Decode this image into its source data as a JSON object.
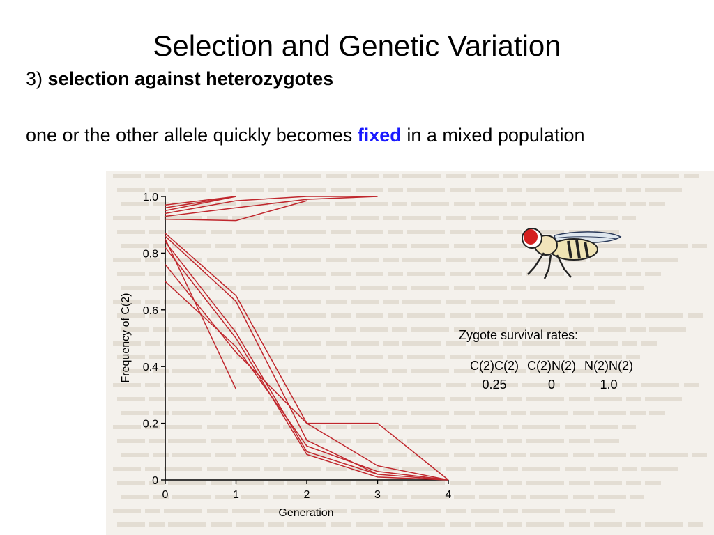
{
  "slide": {
    "title": "Selection and Genetic Variation",
    "subtitle_prefix": "3) ",
    "subtitle_bold": "selection against heterozygotes",
    "statement_before": "one or the other allele quickly becomes ",
    "statement_highlight": "fixed",
    "statement_after": " in a mixed population",
    "highlight_color": "#1a1aff"
  },
  "legend": {
    "title": "Zygote survival rates:",
    "headers": [
      "C(2)C(2)",
      "C(2)N(2)",
      "N(2)N(2)"
    ],
    "values": [
      "0.25",
      "0",
      "1.0"
    ]
  },
  "chart_data": {
    "type": "line",
    "xlabel": "Generation",
    "ylabel": "Frequency of C(2)",
    "xlim": [
      0,
      4
    ],
    "ylim": [
      0,
      1.0
    ],
    "xticks": [
      "0",
      "1",
      "2",
      "3",
      "4"
    ],
    "yticks": [
      "0",
      "0.2",
      "0.4",
      "0.6",
      "0.8",
      "1.0"
    ],
    "line_color": "#c0272d",
    "series": [
      {
        "x": [
          0,
          1
        ],
        "values": [
          0.97,
          1.0
        ]
      },
      {
        "x": [
          0,
          1
        ],
        "values": [
          0.96,
          1.0
        ]
      },
      {
        "x": [
          0,
          1
        ],
        "values": [
          0.95,
          1.0
        ]
      },
      {
        "x": [
          0,
          1,
          2,
          3
        ],
        "values": [
          0.94,
          0.985,
          1.0,
          1.0
        ]
      },
      {
        "x": [
          0,
          1,
          2,
          3
        ],
        "values": [
          0.93,
          0.96,
          0.99,
          1.0
        ]
      },
      {
        "x": [
          0,
          1,
          2
        ],
        "values": [
          0.92,
          0.915,
          0.985
        ]
      },
      {
        "x": [
          0,
          1,
          2,
          3,
          4
        ],
        "values": [
          0.87,
          0.65,
          0.2,
          0.2,
          0
        ]
      },
      {
        "x": [
          0,
          1,
          2,
          3
        ],
        "values": [
          0.86,
          0.63,
          0.14,
          0.02
        ]
      },
      {
        "x": [
          0,
          1,
          2,
          3,
          4
        ],
        "values": [
          0.84,
          0.52,
          0.1,
          0.02,
          0
        ]
      },
      {
        "x": [
          0,
          1,
          2,
          3,
          4
        ],
        "values": [
          0.82,
          0.5,
          0.09,
          0.01,
          0
        ]
      },
      {
        "x": [
          0,
          1,
          2,
          3,
          4
        ],
        "values": [
          0.76,
          0.45,
          0.2,
          0.05,
          0
        ]
      },
      {
        "x": [
          0,
          1,
          2,
          3,
          4
        ],
        "values": [
          0.7,
          0.47,
          0.12,
          0.03,
          0
        ]
      },
      {
        "x": [
          0,
          1
        ],
        "values": [
          0.85,
          0.32
        ]
      }
    ]
  }
}
